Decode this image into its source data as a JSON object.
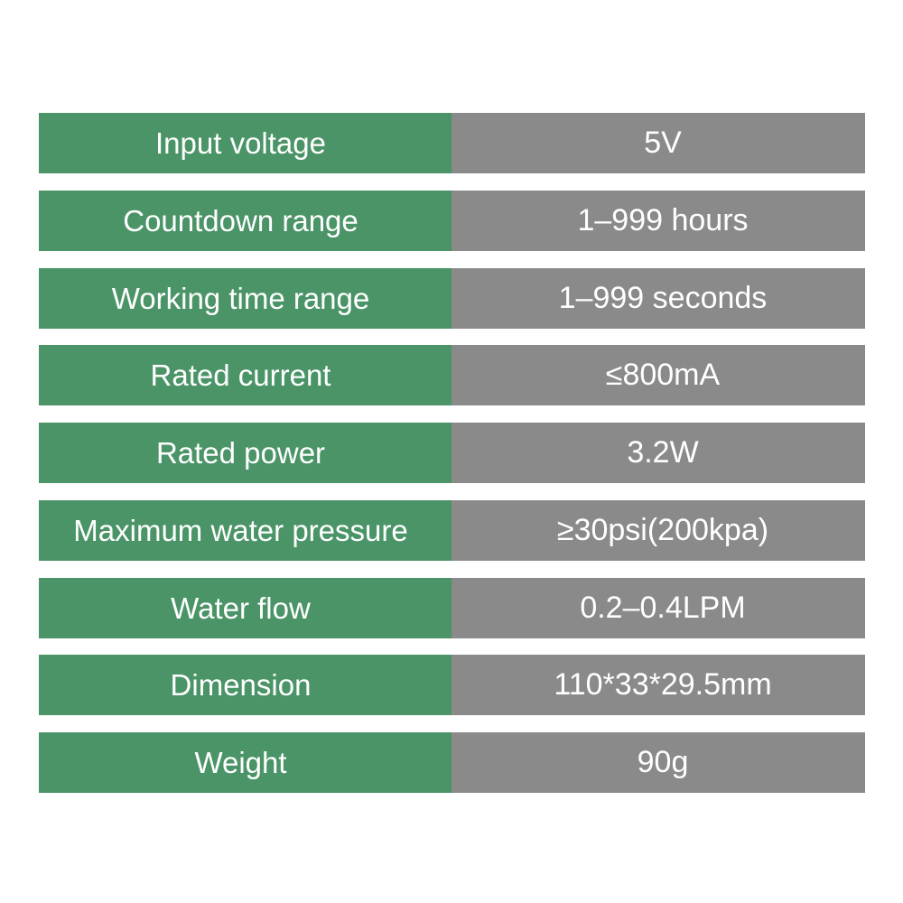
{
  "colors": {
    "label_bg": "#4a9467",
    "value_bg": "#8a8a8a",
    "text": "#ffffff"
  },
  "specs": [
    {
      "label": "Input voltage",
      "value": "5V"
    },
    {
      "label": "Countdown range",
      "value": "1–999 hours"
    },
    {
      "label": "Working time range",
      "value": "1–999 seconds"
    },
    {
      "label": "Rated current",
      "value": "≤800mA"
    },
    {
      "label": "Rated power",
      "value": "3.2W"
    },
    {
      "label": "Maximum water pressure",
      "value": "≥30psi(200kpa)"
    },
    {
      "label": "Water flow",
      "value": "0.2–0.4LPM"
    },
    {
      "label": "Dimension",
      "value": "110*33*29.5mm"
    },
    {
      "label": "Weight",
      "value": "90g"
    }
  ]
}
